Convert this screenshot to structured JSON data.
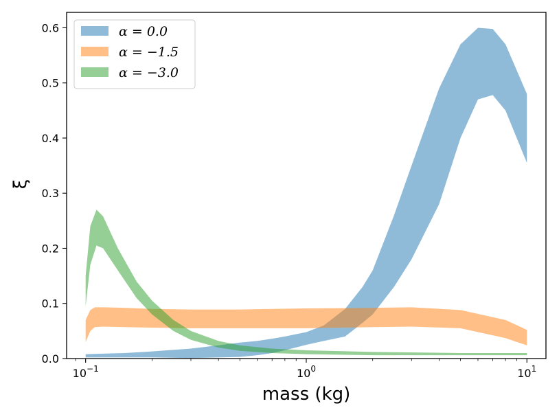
{
  "chart_data": {
    "type": "area",
    "title": "",
    "xlabel": "mass (kg)",
    "ylabel": "ξ",
    "xscale": "log",
    "xlim": [
      0.082,
      12.2
    ],
    "ylim": [
      0.0,
      0.628
    ],
    "grid": false,
    "legend_position": "top-left",
    "x_ticks": [
      {
        "value": 0.1,
        "base": "10",
        "exp": "−1"
      },
      {
        "value": 1,
        "base": "10",
        "exp": "0"
      },
      {
        "value": 10,
        "base": "10",
        "exp": "1"
      }
    ],
    "y_ticks": [
      {
        "value": 0.0,
        "label": "0.0"
      },
      {
        "value": 0.1,
        "label": "0.1"
      },
      {
        "value": 0.2,
        "label": "0.2"
      },
      {
        "value": 0.3,
        "label": "0.3"
      },
      {
        "value": 0.4,
        "label": "0.4"
      },
      {
        "value": 0.5,
        "label": "0.5"
      },
      {
        "value": 0.6,
        "label": "0.6"
      }
    ],
    "series": [
      {
        "name": "α = 0.0",
        "color": "#1f77b4",
        "opacity": 0.5,
        "x": [
          0.1,
          0.15,
          0.2,
          0.3,
          0.4,
          0.5,
          0.6,
          0.7,
          0.8,
          1.0,
          1.2,
          1.5,
          1.8,
          2.0,
          2.5,
          3.0,
          4.0,
          5.0,
          6.0,
          7.0,
          8.0,
          10.0
        ],
        "upper": [
          0.008,
          0.01,
          0.013,
          0.018,
          0.024,
          0.029,
          0.032,
          0.036,
          0.04,
          0.048,
          0.06,
          0.09,
          0.13,
          0.16,
          0.26,
          0.35,
          0.49,
          0.57,
          0.6,
          0.598,
          0.57,
          0.48
        ],
        "lower": [
          0.002,
          0.002,
          0.002,
          0.001,
          0.002,
          0.003,
          0.006,
          0.01,
          0.015,
          0.025,
          0.032,
          0.04,
          0.065,
          0.08,
          0.13,
          0.18,
          0.28,
          0.4,
          0.47,
          0.478,
          0.45,
          0.355
        ]
      },
      {
        "name": "α = −1.5",
        "color": "#ff7f0e",
        "opacity": 0.5,
        "x": [
          0.1,
          0.105,
          0.11,
          0.12,
          0.15,
          0.2,
          0.3,
          0.5,
          1.0,
          2.0,
          3.0,
          5.0,
          8.0,
          10.0
        ],
        "upper": [
          0.07,
          0.088,
          0.093,
          0.093,
          0.092,
          0.09,
          0.089,
          0.089,
          0.091,
          0.092,
          0.093,
          0.088,
          0.07,
          0.052
        ],
        "lower": [
          0.03,
          0.05,
          0.057,
          0.058,
          0.057,
          0.056,
          0.055,
          0.055,
          0.055,
          0.057,
          0.058,
          0.055,
          0.037,
          0.024
        ]
      },
      {
        "name": "α = −3.0",
        "color": "#2ca02c",
        "opacity": 0.5,
        "x": [
          0.1,
          0.105,
          0.112,
          0.12,
          0.14,
          0.17,
          0.2,
          0.25,
          0.3,
          0.4,
          0.5,
          0.7,
          1.0,
          2.0,
          5.0,
          10.0
        ],
        "upper": [
          0.15,
          0.24,
          0.27,
          0.258,
          0.2,
          0.14,
          0.105,
          0.07,
          0.05,
          0.032,
          0.024,
          0.018,
          0.015,
          0.012,
          0.01,
          0.01
        ],
        "lower": [
          0.095,
          0.17,
          0.205,
          0.2,
          0.16,
          0.11,
          0.08,
          0.05,
          0.034,
          0.02,
          0.014,
          0.01,
          0.008,
          0.006,
          0.006,
          0.006
        ]
      }
    ]
  }
}
